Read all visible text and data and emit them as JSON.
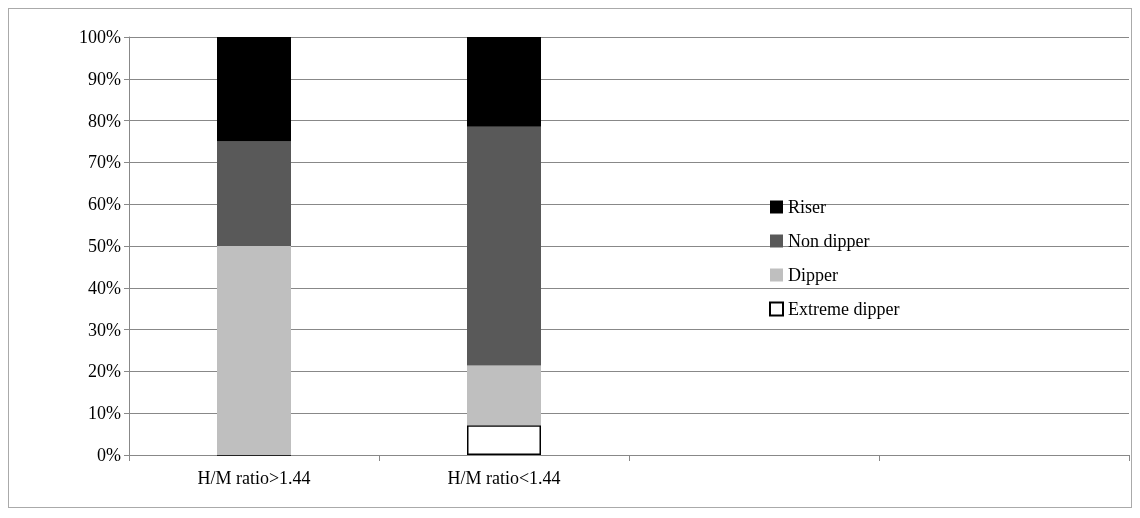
{
  "chart_data": {
    "type": "bar",
    "stacked": true,
    "categories": [
      "H/M ratio>1.44",
      "H/M ratio<1.44",
      null,
      null
    ],
    "series": [
      {
        "name": "Extreme dipper",
        "color": "#ffffff",
        "values": [
          0,
          7.1,
          null,
          null
        ]
      },
      {
        "name": "Dipper",
        "color": "#bfbfbf",
        "values": [
          50,
          14.3,
          null,
          null
        ]
      },
      {
        "name": "Non dipper",
        "color": "#595959",
        "values": [
          25,
          57.1,
          null,
          null
        ]
      },
      {
        "name": "Riser",
        "color": "#000000",
        "values": [
          25,
          21.5,
          null,
          null
        ]
      }
    ],
    "ylim": [
      0,
      100
    ],
    "yticks": [
      {
        "value": 0,
        "label": "0%"
      },
      {
        "value": 10,
        "label": "10%"
      },
      {
        "value": 20,
        "label": "20%"
      },
      {
        "value": 30,
        "label": "30%"
      },
      {
        "value": 40,
        "label": "40%"
      },
      {
        "value": 50,
        "label": "50%"
      },
      {
        "value": 60,
        "label": "60%"
      },
      {
        "value": 70,
        "label": "70%"
      },
      {
        "value": 80,
        "label": "80%"
      },
      {
        "value": 90,
        "label": "90%"
      },
      {
        "value": 100,
        "label": "100%"
      }
    ],
    "grid": "y",
    "legend": "right"
  }
}
